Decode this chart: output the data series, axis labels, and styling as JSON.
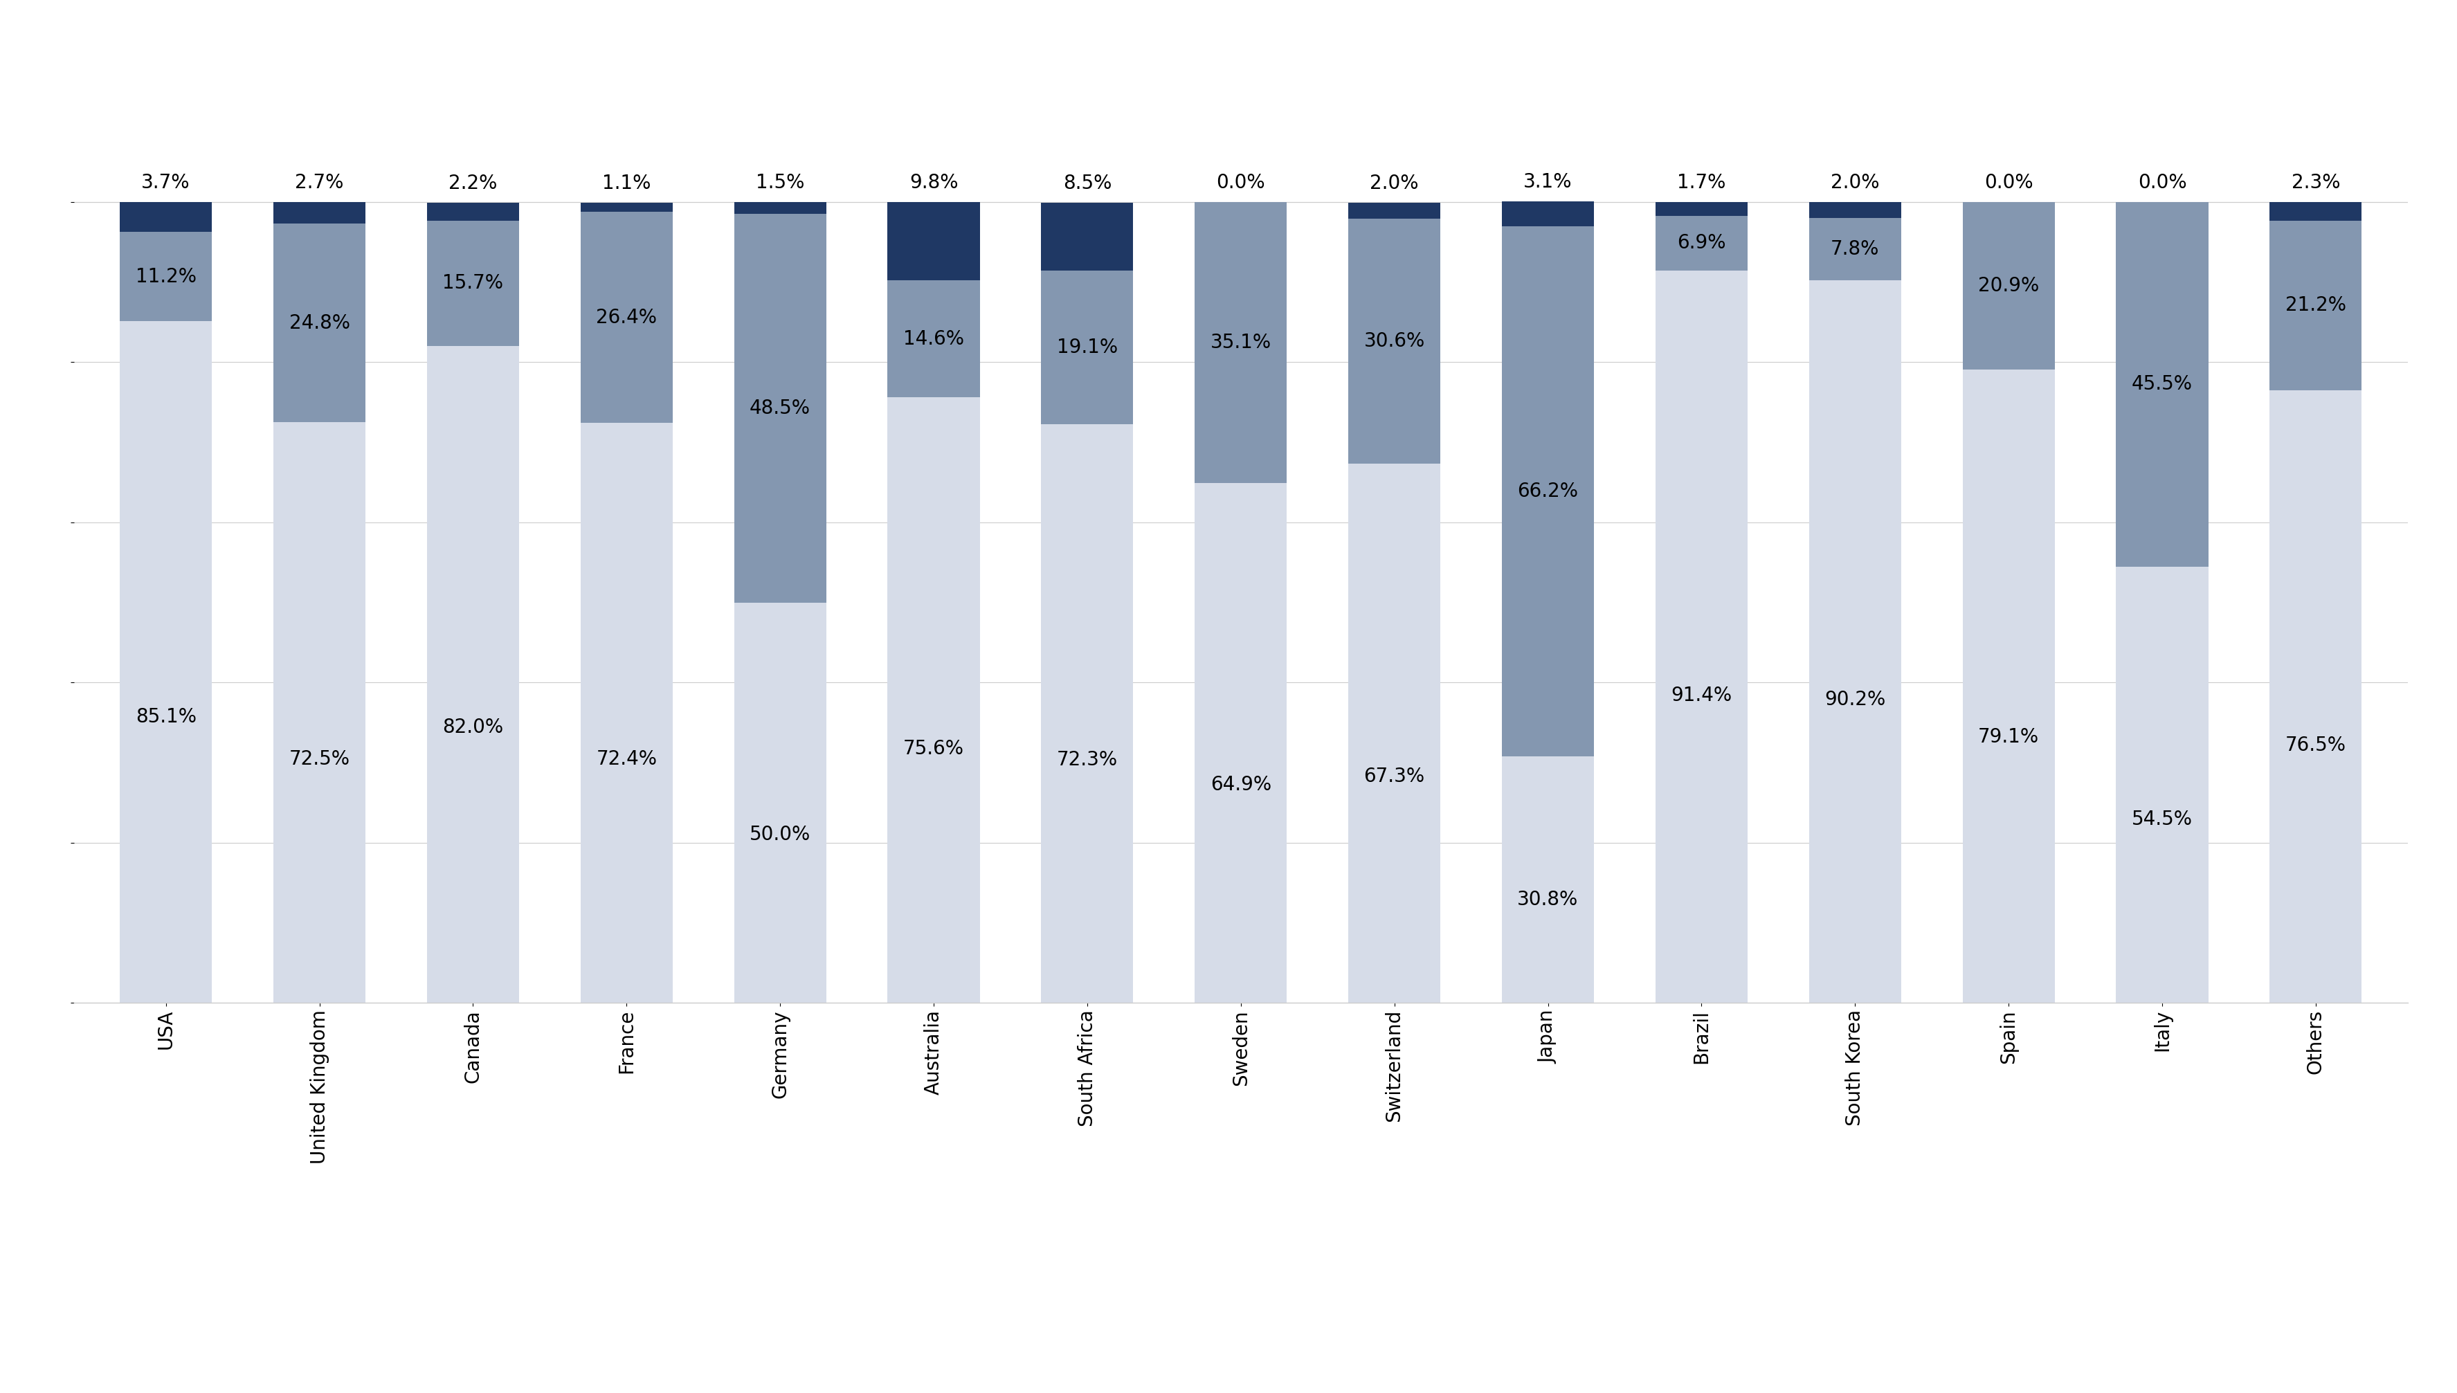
{
  "categories": [
    "USA",
    "United Kingdom",
    "Canada",
    "France",
    "Germany",
    "Australia",
    "South Africa",
    "Sweden",
    "Switzerland",
    "Japan",
    "Brazil",
    "South Korea",
    "Spain",
    "Italy",
    "Others"
  ],
  "operational": [
    85.1,
    72.5,
    82.0,
    72.4,
    50.0,
    75.6,
    72.3,
    64.9,
    67.3,
    30.8,
    91.4,
    90.2,
    79.1,
    54.5,
    76.5
  ],
  "financial": [
    11.2,
    24.8,
    15.7,
    26.4,
    48.5,
    14.6,
    19.1,
    35.1,
    30.6,
    66.2,
    6.9,
    7.8,
    20.9,
    45.5,
    21.2
  ],
  "equity": [
    3.7,
    2.7,
    2.2,
    1.1,
    1.5,
    9.8,
    8.5,
    0.0,
    2.0,
    3.1,
    1.7,
    2.0,
    0.0,
    0.0,
    2.3
  ],
  "color_operational": "#d6dce8",
  "color_financial": "#8497b0",
  "color_equity": "#1f3864",
  "background_color": "#ffffff",
  "bar_width": 0.6,
  "ylim": [
    0,
    120
  ],
  "gridline_color": "#cccccc",
  "label_fontsize": 20,
  "tick_fontsize": 20,
  "legend_fontsize": 20
}
